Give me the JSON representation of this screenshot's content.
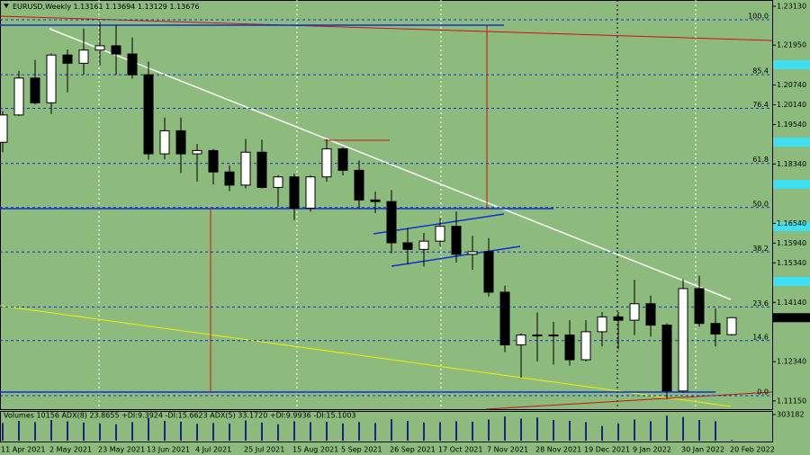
{
  "chart_data": [
    {
      "type": "candlestick",
      "symbol": "EURUSD,Weekly",
      "categories": [
        "11 Apr 2021",
        null,
        null,
        "2 May 2021",
        null,
        null,
        "23 May 2021",
        null,
        null,
        "13 Jun 2021",
        null,
        null,
        "4 Jul 2021",
        null,
        null,
        "25 Jul 2021",
        null,
        null,
        "15 Aug 2021",
        null,
        null,
        "5 Sep 2021",
        null,
        null,
        "26 Sep 2021",
        null,
        null,
        "17 Oct 2021",
        null,
        null,
        "7 Nov 2021",
        null,
        null,
        "28 Nov 2021",
        null,
        null,
        "19 Dec 2021",
        null,
        null,
        "9 Jan 2022",
        null,
        null,
        "30 Jan 2022",
        null,
        null,
        "20 Feb 2022"
      ],
      "open": [
        1.19,
        1.1983,
        1.2095,
        1.202,
        1.2165,
        1.214,
        1.218,
        1.2193,
        1.2168,
        1.2105,
        1.1865,
        1.1935,
        1.1865,
        1.1875,
        1.181,
        1.177,
        1.187,
        1.1763,
        1.1795,
        1.17,
        1.1795,
        1.188,
        1.1815,
        1.1725,
        1.172,
        1.1595,
        1.1575,
        1.16,
        1.1645,
        1.156,
        1.1568,
        1.1445,
        1.1285,
        1.1315,
        1.1315,
        1.1315,
        1.124,
        1.1325,
        1.137,
        1.136,
        1.141,
        1.1345,
        1.1145,
        1.1456,
        1.135,
        1.13161
      ],
      "high": [
        1.1995,
        1.2117,
        1.215,
        1.217,
        1.2182,
        1.2245,
        1.2266,
        1.2255,
        1.2218,
        1.2145,
        1.1975,
        1.1975,
        1.1895,
        1.188,
        1.183,
        1.191,
        1.1908,
        1.18,
        1.1805,
        1.18,
        1.1909,
        1.1885,
        1.1845,
        1.175,
        1.1755,
        1.164,
        1.1625,
        1.167,
        1.169,
        1.1616,
        1.1609,
        1.1465,
        1.132,
        1.1383,
        1.1355,
        1.136,
        1.136,
        1.1385,
        1.1385,
        1.1483,
        1.1435,
        1.135,
        1.1484,
        1.1495,
        1.1395,
        1.13694
      ],
      "low": [
        1.187,
        1.198,
        1.2015,
        1.1986,
        1.2052,
        1.2105,
        1.2133,
        1.2105,
        1.2093,
        1.1847,
        1.1848,
        1.1807,
        1.1781,
        1.1772,
        1.1752,
        1.176,
        1.176,
        1.1705,
        1.1664,
        1.169,
        1.178,
        1.18,
        1.17,
        1.1685,
        1.1563,
        1.1529,
        1.1523,
        1.1585,
        1.1535,
        1.1513,
        1.1432,
        1.1263,
        1.1186,
        1.1235,
        1.1225,
        1.1222,
        1.1235,
        1.128,
        1.1272,
        1.1315,
        1.131,
        1.1121,
        1.114,
        1.134,
        1.128,
        1.13129
      ],
      "close": [
        1.1983,
        1.2095,
        1.202,
        1.2165,
        1.214,
        1.218,
        1.2193,
        1.2168,
        1.2105,
        1.1865,
        1.1935,
        1.1865,
        1.1875,
        1.181,
        1.177,
        1.187,
        1.1763,
        1.1795,
        1.17,
        1.1795,
        1.188,
        1.1815,
        1.1725,
        1.172,
        1.1595,
        1.1575,
        1.16,
        1.1645,
        1.156,
        1.1568,
        1.1445,
        1.1285,
        1.1315,
        1.1315,
        1.1315,
        1.124,
        1.1325,
        1.137,
        1.136,
        1.141,
        1.1345,
        1.1145,
        1.1456,
        1.135,
        1.1318,
        1.13676
      ],
      "ylim": [
        1.109,
        1.2332
      ],
      "yticks": [
        {
          "value": 1.2313,
          "label": "1.23130"
        },
        {
          "value": 1.2195,
          "label": "1.21950"
        },
        {
          "value": 1.2074,
          "label": "1.20740"
        },
        {
          "value": 1.2014,
          "label": "1.20140"
        },
        {
          "value": 1.1954,
          "label": "1.19540"
        },
        {
          "value": 1.1834,
          "label": "1.18340"
        },
        {
          "value": 1.1654,
          "label": "1.16540"
        },
        {
          "value": 1.1594,
          "label": "1.15940"
        },
        {
          "value": 1.1534,
          "label": "1.15340"
        },
        {
          "value": 1.1414,
          "label": "1.14140"
        },
        {
          "value": 1.1234,
          "label": "1.12340"
        },
        {
          "value": 1.1115,
          "label": "1.11150"
        }
      ],
      "fib_levels": [
        {
          "level": "100.0",
          "price": 1.2272
        },
        {
          "level": "85.4",
          "price": 1.2105
        },
        {
          "level": "76.4",
          "price": 1.2003
        },
        {
          "level": "61.8",
          "price": 1.1836
        },
        {
          "level": "50.0",
          "price": 1.1702
        },
        {
          "level": "38.2",
          "price": 1.1567
        },
        {
          "level": "23.6",
          "price": 1.14
        },
        {
          "level": "14.6",
          "price": 1.1298
        },
        {
          "level": "0.0",
          "price": 1.1131
        }
      ],
      "up_color": "#ffffff",
      "down_color": "#000000",
      "background": "#8cbb7d"
    },
    {
      "type": "bar",
      "label": "Volumes 10156  ADX(8) 23.8655 +DI:9.3924 -DI:15.6623  ADX(5) 33.1720 +DI:9.9936 -DI:15.1003",
      "values": [
        205000,
        230000,
        215000,
        240000,
        225000,
        210000,
        200000,
        190000,
        215000,
        265000,
        230000,
        220000,
        195000,
        205000,
        200000,
        235000,
        210000,
        190000,
        225000,
        215000,
        220000,
        200000,
        215000,
        205000,
        250000,
        230000,
        210000,
        215000,
        225000,
        220000,
        245000,
        280000,
        255000,
        270000,
        240000,
        230000,
        215000,
        170000,
        200000,
        245000,
        225000,
        290000,
        275000,
        240000,
        225000,
        10156
      ],
      "ylim": [
        0,
        303182
      ],
      "yticks": [
        303182
      ],
      "color": "#1a237e"
    }
  ]
}
